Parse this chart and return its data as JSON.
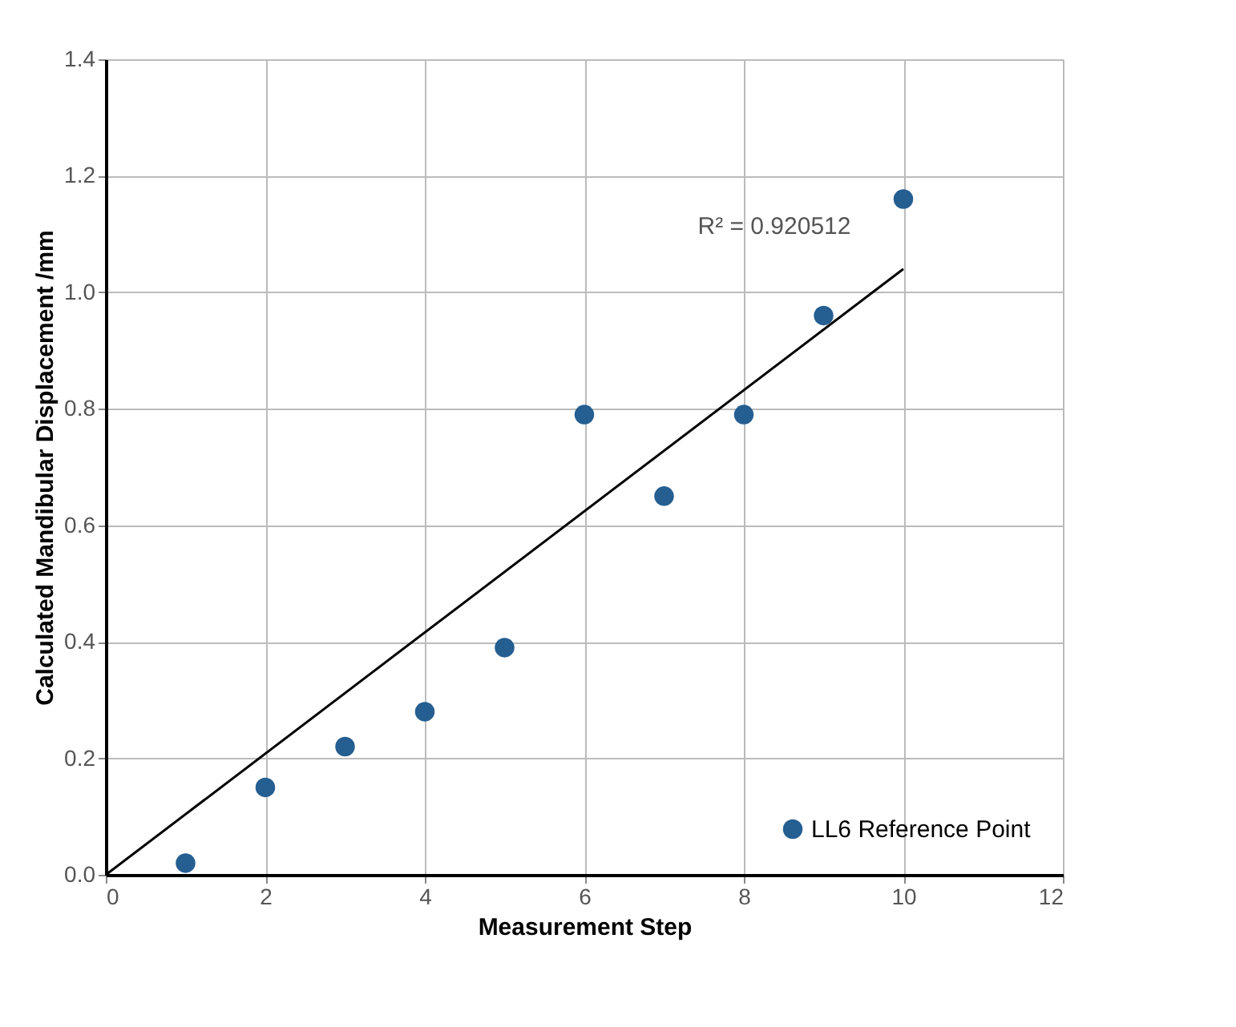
{
  "chart_data": {
    "type": "scatter",
    "xlabel": "Measurement Step",
    "ylabel": "Calculated Mandibular Displacement /mm",
    "xlim": [
      0,
      12
    ],
    "xticks": [
      0,
      2,
      4,
      6,
      8,
      10,
      12
    ],
    "ylim": [
      0,
      1.4
    ],
    "yticks": [
      {
        "value": 0,
        "label": "0.0"
      },
      {
        "value": 0.2,
        "label": "0.2"
      },
      {
        "value": 0.4,
        "label": "0.4"
      },
      {
        "value": 0.6,
        "label": "0.6"
      },
      {
        "value": 0.8,
        "label": "0.8"
      },
      {
        "value": 1,
        "label": "1.0"
      },
      {
        "value": 1.2,
        "label": "1.2"
      },
      {
        "value": 1.4,
        "label": "1.4"
      }
    ],
    "grid": true,
    "legend": "bottom right",
    "series": [
      {
        "name": "LL6 Reference Point",
        "color": "#255e91",
        "x": [
          1,
          2,
          3,
          4,
          5,
          6,
          7,
          8,
          9,
          10
        ],
        "values": [
          0.02,
          0.15,
          0.22,
          0.28,
          0.39,
          0.79,
          0.65,
          0.79,
          0.96,
          1.16
        ],
        "marker": "circle"
      },
      {
        "type": "line",
        "color": "#000000",
        "x": [
          0,
          10
        ],
        "values": [
          0,
          1.04
        ],
        "line_style": "solid"
      }
    ],
    "annotations": [
      "R² = 0.920512"
    ]
  }
}
